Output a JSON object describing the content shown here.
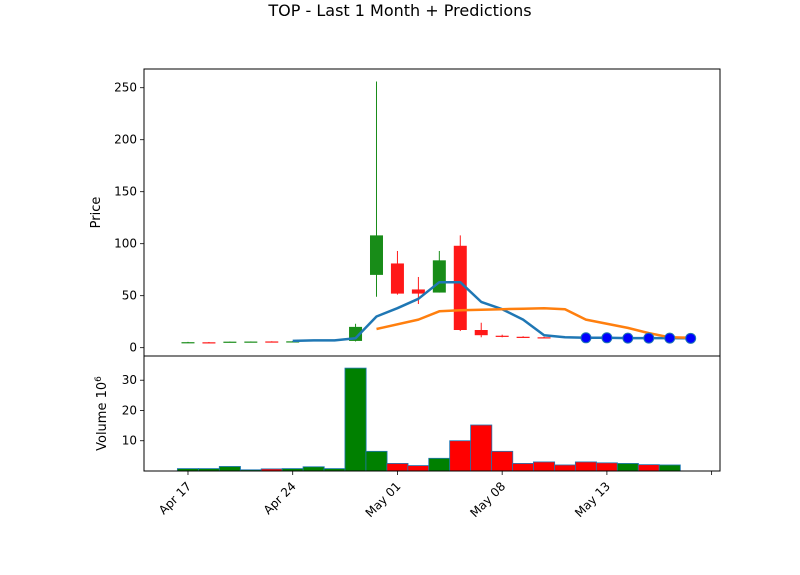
{
  "chart_data": [
    {
      "type": "candlestick",
      "title": "TOP - Last 1 Month + Predictions",
      "ylabel": "Price",
      "xlabel": "",
      "ylim": [
        -8,
        268
      ],
      "y_ticks": [
        0,
        50,
        100,
        150,
        200,
        250
      ],
      "x_tick_labels": [
        "Apr 17",
        "Apr 24",
        "May 01",
        "May 08",
        "May 13"
      ],
      "x_tick_indices": [
        0,
        5,
        10,
        15,
        20
      ],
      "xlim": [
        -2.1,
        25.4
      ],
      "x_tick_extra_index": 25,
      "grid": false,
      "up_color": "#008000",
      "down_color": "#ff0000",
      "candles": [
        {
          "i": 0,
          "open": 5.0,
          "high": 5.6,
          "low": 4.7,
          "close": 5.3
        },
        {
          "i": 1,
          "open": 5.2,
          "high": 5.5,
          "low": 4.9,
          "close": 5.1
        },
        {
          "i": 2,
          "open": 5.2,
          "high": 5.9,
          "low": 5.0,
          "close": 5.8
        },
        {
          "i": 3,
          "open": 5.6,
          "high": 6.0,
          "low": 5.3,
          "close": 5.9
        },
        {
          "i": 4,
          "open": 6.0,
          "high": 6.2,
          "low": 5.4,
          "close": 5.7
        },
        {
          "i": 5,
          "open": 6.0,
          "high": 6.3,
          "low": 5.6,
          "close": 6.1
        },
        {
          "i": 8,
          "open": 6.5,
          "high": 23.0,
          "low": 6.0,
          "close": 20.0
        },
        {
          "i": 9,
          "open": 70.0,
          "high": 256.0,
          "low": 49.0,
          "close": 108.0
        },
        {
          "i": 10,
          "open": 81.0,
          "high": 93.0,
          "low": 51.0,
          "close": 52.0
        },
        {
          "i": 11,
          "open": 56.0,
          "high": 68.0,
          "low": 42.0,
          "close": 52.0
        },
        {
          "i": 12,
          "open": 53.0,
          "high": 93.0,
          "low": 53.0,
          "close": 84.0
        },
        {
          "i": 13,
          "open": 98.0,
          "high": 108.0,
          "low": 16.0,
          "close": 17.0
        },
        {
          "i": 14,
          "open": 17.0,
          "high": 24.0,
          "low": 10.0,
          "close": 12.0
        },
        {
          "i": 15,
          "open": 11.5,
          "high": 12.5,
          "low": 10.0,
          "close": 10.8
        },
        {
          "i": 16,
          "open": 10.5,
          "high": 11.0,
          "low": 9.5,
          "close": 9.8
        },
        {
          "i": 17,
          "open": 10.0,
          "high": 10.5,
          "low": 9.4,
          "close": 9.6
        }
      ],
      "lines": [
        {
          "color": "#1f77b4",
          "points": [
            [
              5,
              6.5
            ],
            [
              6,
              7
            ],
            [
              7,
              7
            ],
            [
              8,
              9
            ],
            [
              9,
              30
            ],
            [
              10,
              38
            ],
            [
              11,
              47
            ],
            [
              12,
              63
            ],
            [
              13,
              63
            ],
            [
              14,
              44
            ],
            [
              15,
              37
            ],
            [
              16,
              27
            ],
            [
              17,
              12
            ],
            [
              18,
              10
            ],
            [
              19,
              9.5
            ],
            [
              20,
              9.5
            ],
            [
              21,
              9.2
            ],
            [
              22,
              9.2
            ],
            [
              23,
              9.2
            ],
            [
              24,
              9
            ]
          ]
        },
        {
          "color": "#ff7f0e",
          "points": [
            [
              9,
              18
            ],
            [
              11,
              27
            ],
            [
              12,
              35
            ],
            [
              13,
              36
            ],
            [
              15,
              37
            ],
            [
              16,
              37.5
            ],
            [
              17,
              38
            ],
            [
              18,
              37
            ],
            [
              19,
              27
            ],
            [
              21,
              19
            ],
            [
              22,
              14
            ],
            [
              23,
              10
            ],
            [
              24,
              9.5
            ]
          ]
        }
      ],
      "prediction_markers": {
        "color": "#0000ff",
        "edge_color": "#1f77b4",
        "points": [
          [
            19,
            9.5
          ],
          [
            20,
            9.5
          ],
          [
            21,
            9.2
          ],
          [
            22,
            9.2
          ],
          [
            23,
            9.2
          ],
          [
            24,
            9
          ]
        ]
      }
    },
    {
      "type": "bar",
      "ylabel": "Volume  10^6",
      "ylim": [
        0,
        38
      ],
      "y_ticks": [
        10,
        20,
        30
      ],
      "volumes": [
        {
          "i": 0,
          "value": 0.8,
          "dir": "up"
        },
        {
          "i": 1,
          "value": 0.8,
          "dir": "up"
        },
        {
          "i": 2,
          "value": 1.5,
          "dir": "up"
        },
        {
          "i": 3,
          "value": 0.4,
          "dir": "up"
        },
        {
          "i": 4,
          "value": 0.7,
          "dir": "down"
        },
        {
          "i": 5,
          "value": 0.8,
          "dir": "up"
        },
        {
          "i": 6,
          "value": 1.4,
          "dir": "up"
        },
        {
          "i": 7,
          "value": 0.8,
          "dir": "up"
        },
        {
          "i": 8,
          "value": 34.0,
          "dir": "up"
        },
        {
          "i": 9,
          "value": 6.5,
          "dir": "up"
        },
        {
          "i": 10,
          "value": 2.5,
          "dir": "down"
        },
        {
          "i": 11,
          "value": 1.8,
          "dir": "down"
        },
        {
          "i": 12,
          "value": 4.2,
          "dir": "up"
        },
        {
          "i": 13,
          "value": 10.0,
          "dir": "down"
        },
        {
          "i": 14,
          "value": 15.2,
          "dir": "down"
        },
        {
          "i": 15,
          "value": 6.5,
          "dir": "down"
        },
        {
          "i": 16,
          "value": 2.5,
          "dir": "down"
        },
        {
          "i": 17,
          "value": 3.0,
          "dir": "down"
        },
        {
          "i": 18,
          "value": 2.0,
          "dir": "down"
        },
        {
          "i": 19,
          "value": 3.0,
          "dir": "down"
        },
        {
          "i": 20,
          "value": 2.7,
          "dir": "down"
        },
        {
          "i": 21,
          "value": 2.5,
          "dir": "up"
        },
        {
          "i": 22,
          "value": 2.1,
          "dir": "down"
        },
        {
          "i": 23,
          "value": 2.0,
          "dir": "up"
        }
      ]
    }
  ],
  "labels": {
    "title": "TOP - Last 1 Month + Predictions",
    "price_axis": "Price",
    "volume_axis": "Volume  10",
    "volume_exp": "6"
  }
}
